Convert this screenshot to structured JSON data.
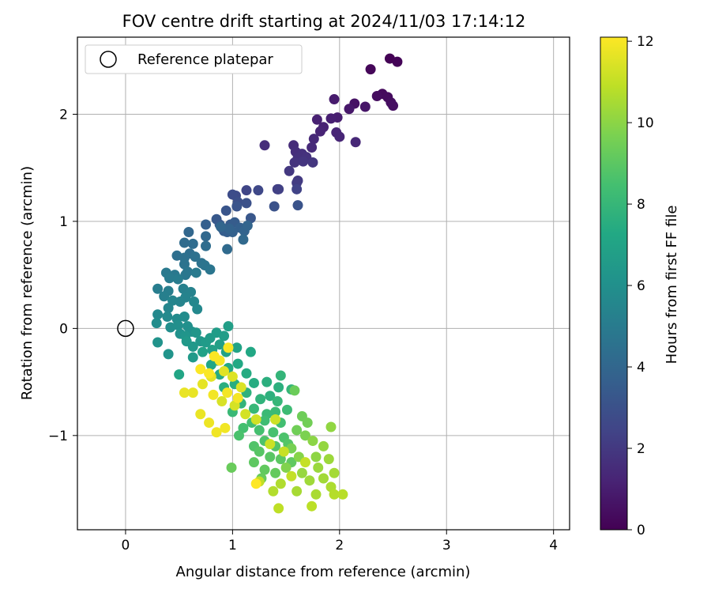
{
  "chart_data": {
    "type": "scatter",
    "title": "FOV centre drift starting at 2024/11/03 17:14:12",
    "xlabel": "Angular distance from reference (arcmin)",
    "ylabel": "Rotation from reference (arcmin)",
    "xlim": [
      -0.45,
      4.15
    ],
    "ylim": [
      -1.88,
      2.72
    ],
    "xticks": [
      0,
      1,
      2,
      3,
      4
    ],
    "yticks": [
      -1,
      0,
      1,
      2
    ],
    "grid": true,
    "legend": {
      "position": "top-left",
      "entries": [
        "Reference platepar"
      ]
    },
    "reference_point": {
      "x": 0,
      "y": 0,
      "label": "Reference platepar"
    },
    "colorbar": {
      "label": "Hours from first FF file",
      "range": [
        0,
        12.1
      ],
      "ticks": [
        0,
        2,
        4,
        6,
        8,
        10,
        12
      ],
      "colormap": "viridis"
    },
    "points": [
      {
        "x": 2.47,
        "y": 2.52,
        "h": 0.05
      },
      {
        "x": 2.54,
        "y": 2.49,
        "h": 0.1
      },
      {
        "x": 2.29,
        "y": 2.42,
        "h": 0.2
      },
      {
        "x": 2.4,
        "y": 2.19,
        "h": 0.3
      },
      {
        "x": 2.45,
        "y": 2.16,
        "h": 0.35
      },
      {
        "x": 2.35,
        "y": 2.17,
        "h": 0.4
      },
      {
        "x": 2.48,
        "y": 2.11,
        "h": 0.45
      },
      {
        "x": 2.5,
        "y": 2.08,
        "h": 0.5
      },
      {
        "x": 2.14,
        "y": 2.1,
        "h": 0.6
      },
      {
        "x": 2.24,
        "y": 2.07,
        "h": 0.7
      },
      {
        "x": 2.09,
        "y": 2.05,
        "h": 0.8
      },
      {
        "x": 1.95,
        "y": 2.14,
        "h": 0.9
      },
      {
        "x": 1.98,
        "y": 1.97,
        "h": 1.0
      },
      {
        "x": 1.92,
        "y": 1.96,
        "h": 1.05
      },
      {
        "x": 1.79,
        "y": 1.95,
        "h": 1.1
      },
      {
        "x": 1.85,
        "y": 1.88,
        "h": 1.15
      },
      {
        "x": 1.82,
        "y": 1.84,
        "h": 1.2
      },
      {
        "x": 1.97,
        "y": 1.83,
        "h": 1.25
      },
      {
        "x": 2.0,
        "y": 1.79,
        "h": 1.3
      },
      {
        "x": 2.15,
        "y": 1.74,
        "h": 1.35
      },
      {
        "x": 1.76,
        "y": 1.77,
        "h": 1.4
      },
      {
        "x": 1.74,
        "y": 1.69,
        "h": 1.45
      },
      {
        "x": 1.57,
        "y": 1.71,
        "h": 1.5
      },
      {
        "x": 1.3,
        "y": 1.71,
        "h": 1.55
      },
      {
        "x": 1.59,
        "y": 1.65,
        "h": 1.6
      },
      {
        "x": 1.65,
        "y": 1.63,
        "h": 1.65
      },
      {
        "x": 1.61,
        "y": 1.59,
        "h": 1.7
      },
      {
        "x": 1.69,
        "y": 1.6,
        "h": 1.75
      },
      {
        "x": 1.58,
        "y": 1.55,
        "h": 1.8
      },
      {
        "x": 1.66,
        "y": 1.56,
        "h": 1.85
      },
      {
        "x": 1.75,
        "y": 1.55,
        "h": 1.9
      },
      {
        "x": 1.53,
        "y": 1.47,
        "h": 1.95
      },
      {
        "x": 1.61,
        "y": 1.38,
        "h": 2.0
      },
      {
        "x": 1.6,
        "y": 1.36,
        "h": 2.1
      },
      {
        "x": 1.42,
        "y": 1.3,
        "h": 2.2
      },
      {
        "x": 1.43,
        "y": 1.3,
        "h": 2.3
      },
      {
        "x": 1.6,
        "y": 1.3,
        "h": 2.4
      },
      {
        "x": 1.13,
        "y": 1.29,
        "h": 2.5
      },
      {
        "x": 1.24,
        "y": 1.29,
        "h": 2.6
      },
      {
        "x": 1.03,
        "y": 1.24,
        "h": 2.7
      },
      {
        "x": 1.0,
        "y": 1.25,
        "h": 2.8
      },
      {
        "x": 1.05,
        "y": 1.18,
        "h": 2.9
      },
      {
        "x": 1.13,
        "y": 1.17,
        "h": 3.0
      },
      {
        "x": 1.39,
        "y": 1.14,
        "h": 3.05
      },
      {
        "x": 1.61,
        "y": 1.15,
        "h": 3.1
      },
      {
        "x": 1.04,
        "y": 1.14,
        "h": 3.15
      },
      {
        "x": 0.94,
        "y": 1.1,
        "h": 3.2
      },
      {
        "x": 1.17,
        "y": 1.03,
        "h": 3.25
      },
      {
        "x": 0.85,
        "y": 1.02,
        "h": 3.3
      },
      {
        "x": 0.88,
        "y": 0.97,
        "h": 3.35
      },
      {
        "x": 0.9,
        "y": 0.94,
        "h": 3.4
      },
      {
        "x": 0.98,
        "y": 0.97,
        "h": 3.45
      },
      {
        "x": 1.02,
        "y": 0.99,
        "h": 3.5
      },
      {
        "x": 0.92,
        "y": 0.91,
        "h": 3.55
      },
      {
        "x": 0.95,
        "y": 0.9,
        "h": 3.6
      },
      {
        "x": 0.75,
        "y": 0.97,
        "h": 3.65
      },
      {
        "x": 1.07,
        "y": 0.94,
        "h": 3.7
      },
      {
        "x": 1.0,
        "y": 0.9,
        "h": 3.75
      },
      {
        "x": 0.97,
        "y": 0.93,
        "h": 3.8
      },
      {
        "x": 1.11,
        "y": 0.91,
        "h": 3.85
      },
      {
        "x": 1.14,
        "y": 0.96,
        "h": 3.9
      },
      {
        "x": 0.89,
        "y": 0.95,
        "h": 3.95
      },
      {
        "x": 0.59,
        "y": 0.9,
        "h": 4.0
      },
      {
        "x": 0.75,
        "y": 0.86,
        "h": 4.05
      },
      {
        "x": 1.1,
        "y": 0.83,
        "h": 4.1
      },
      {
        "x": 0.95,
        "y": 0.74,
        "h": 4.15
      },
      {
        "x": 0.55,
        "y": 0.8,
        "h": 4.2
      },
      {
        "x": 0.63,
        "y": 0.79,
        "h": 4.25
      },
      {
        "x": 0.75,
        "y": 0.77,
        "h": 4.3
      },
      {
        "x": 0.6,
        "y": 0.7,
        "h": 4.35
      },
      {
        "x": 0.48,
        "y": 0.68,
        "h": 4.4
      },
      {
        "x": 0.55,
        "y": 0.66,
        "h": 4.45
      },
      {
        "x": 0.65,
        "y": 0.67,
        "h": 4.5
      },
      {
        "x": 0.71,
        "y": 0.61,
        "h": 4.55
      },
      {
        "x": 0.55,
        "y": 0.6,
        "h": 4.6
      },
      {
        "x": 0.74,
        "y": 0.59,
        "h": 4.65
      },
      {
        "x": 0.79,
        "y": 0.55,
        "h": 4.7
      },
      {
        "x": 0.58,
        "y": 0.53,
        "h": 4.75
      },
      {
        "x": 0.56,
        "y": 0.5,
        "h": 4.8
      },
      {
        "x": 0.46,
        "y": 0.5,
        "h": 4.85
      },
      {
        "x": 0.38,
        "y": 0.52,
        "h": 4.9
      },
      {
        "x": 0.66,
        "y": 0.52,
        "h": 4.95
      },
      {
        "x": 0.41,
        "y": 0.47,
        "h": 5.0
      },
      {
        "x": 0.49,
        "y": 0.46,
        "h": 5.05
      },
      {
        "x": 0.3,
        "y": 0.37,
        "h": 5.1
      },
      {
        "x": 0.4,
        "y": 0.35,
        "h": 5.15
      },
      {
        "x": 0.36,
        "y": 0.3,
        "h": 5.2
      },
      {
        "x": 0.54,
        "y": 0.37,
        "h": 5.25
      },
      {
        "x": 0.61,
        "y": 0.34,
        "h": 5.3
      },
      {
        "x": 0.56,
        "y": 0.29,
        "h": 5.35
      },
      {
        "x": 0.51,
        "y": 0.25,
        "h": 5.4
      },
      {
        "x": 0.44,
        "y": 0.26,
        "h": 5.45
      },
      {
        "x": 0.4,
        "y": 0.19,
        "h": 5.5
      },
      {
        "x": 0.64,
        "y": 0.25,
        "h": 5.55
      },
      {
        "x": 0.67,
        "y": 0.18,
        "h": 5.6
      },
      {
        "x": 0.3,
        "y": 0.13,
        "h": 5.65
      },
      {
        "x": 0.39,
        "y": 0.11,
        "h": 5.7
      },
      {
        "x": 0.48,
        "y": 0.09,
        "h": 5.75
      },
      {
        "x": 0.55,
        "y": 0.11,
        "h": 5.8
      },
      {
        "x": 0.29,
        "y": 0.05,
        "h": 5.85
      },
      {
        "x": 0.42,
        "y": 0.01,
        "h": 5.9
      },
      {
        "x": 0.49,
        "y": 0.03,
        "h": 5.95
      },
      {
        "x": 0.58,
        "y": 0.02,
        "h": 6.0
      },
      {
        "x": 0.62,
        "y": -0.03,
        "h": 6.05
      },
      {
        "x": 0.51,
        "y": -0.05,
        "h": 6.1
      },
      {
        "x": 0.3,
        "y": -0.13,
        "h": 6.15
      },
      {
        "x": 0.4,
        "y": -0.24,
        "h": 6.2
      },
      {
        "x": 0.56,
        "y": -0.07,
        "h": 6.25
      },
      {
        "x": 0.66,
        "y": -0.04,
        "h": 6.3
      },
      {
        "x": 0.7,
        "y": -0.12,
        "h": 6.35
      },
      {
        "x": 0.63,
        "y": -0.17,
        "h": 6.4
      },
      {
        "x": 0.57,
        "y": -0.12,
        "h": 6.45
      },
      {
        "x": 0.63,
        "y": -0.27,
        "h": 6.5
      },
      {
        "x": 0.75,
        "y": -0.13,
        "h": 6.55
      },
      {
        "x": 0.79,
        "y": -0.09,
        "h": 6.6
      },
      {
        "x": 0.85,
        "y": -0.04,
        "h": 6.65
      },
      {
        "x": 0.92,
        "y": -0.07,
        "h": 6.7
      },
      {
        "x": 0.96,
        "y": 0.02,
        "h": 6.75
      },
      {
        "x": 0.88,
        "y": -0.15,
        "h": 6.8
      },
      {
        "x": 0.81,
        "y": -0.2,
        "h": 6.85
      },
      {
        "x": 0.72,
        "y": -0.22,
        "h": 6.9
      },
      {
        "x": 0.94,
        "y": -0.22,
        "h": 6.95
      },
      {
        "x": 1.04,
        "y": -0.18,
        "h": 7.0
      },
      {
        "x": 0.86,
        "y": -0.3,
        "h": 7.05
      },
      {
        "x": 0.5,
        "y": -0.43,
        "h": 7.1
      },
      {
        "x": 0.8,
        "y": -0.34,
        "h": 7.15
      },
      {
        "x": 1.17,
        "y": -0.22,
        "h": 7.2
      },
      {
        "x": 1.05,
        "y": -0.33,
        "h": 7.25
      },
      {
        "x": 0.96,
        "y": -0.37,
        "h": 7.3
      },
      {
        "x": 0.88,
        "y": -0.43,
        "h": 7.35
      },
      {
        "x": 1.13,
        "y": -0.42,
        "h": 7.4
      },
      {
        "x": 1.2,
        "y": -0.51,
        "h": 7.45
      },
      {
        "x": 1.02,
        "y": -0.52,
        "h": 7.5
      },
      {
        "x": 0.92,
        "y": -0.55,
        "h": 7.55
      },
      {
        "x": 1.32,
        "y": -0.5,
        "h": 7.6
      },
      {
        "x": 1.43,
        "y": -0.55,
        "h": 7.65
      },
      {
        "x": 1.35,
        "y": -0.63,
        "h": 7.7
      },
      {
        "x": 1.13,
        "y": -0.6,
        "h": 7.75
      },
      {
        "x": 1.26,
        "y": -0.66,
        "h": 7.8
      },
      {
        "x": 1.08,
        "y": -0.7,
        "h": 7.85
      },
      {
        "x": 1.45,
        "y": -0.44,
        "h": 7.9
      },
      {
        "x": 1.55,
        "y": -0.57,
        "h": 7.95
      },
      {
        "x": 1.42,
        "y": -0.68,
        "h": 8.0
      },
      {
        "x": 1.2,
        "y": -0.75,
        "h": 8.05
      },
      {
        "x": 1.0,
        "y": -0.78,
        "h": 8.1
      },
      {
        "x": 1.32,
        "y": -0.8,
        "h": 8.15
      },
      {
        "x": 1.4,
        "y": -0.78,
        "h": 8.2
      },
      {
        "x": 1.51,
        "y": -0.76,
        "h": 8.25
      },
      {
        "x": 1.3,
        "y": -0.86,
        "h": 8.3
      },
      {
        "x": 1.18,
        "y": -0.88,
        "h": 8.35
      },
      {
        "x": 1.45,
        "y": -0.88,
        "h": 8.4
      },
      {
        "x": 1.1,
        "y": -0.93,
        "h": 8.45
      },
      {
        "x": 1.25,
        "y": -0.95,
        "h": 8.5
      },
      {
        "x": 1.38,
        "y": -0.97,
        "h": 8.55
      },
      {
        "x": 1.06,
        "y": -1.0,
        "h": 8.6
      },
      {
        "x": 1.48,
        "y": -1.02,
        "h": 8.65
      },
      {
        "x": 1.3,
        "y": -1.05,
        "h": 8.7
      },
      {
        "x": 1.2,
        "y": -1.1,
        "h": 8.75
      },
      {
        "x": 1.4,
        "y": -1.1,
        "h": 8.8
      },
      {
        "x": 1.52,
        "y": -1.08,
        "h": 8.85
      },
      {
        "x": 1.25,
        "y": -1.15,
        "h": 8.9
      },
      {
        "x": 1.35,
        "y": -1.2,
        "h": 8.95
      },
      {
        "x": 1.45,
        "y": -1.22,
        "h": 9.0
      },
      {
        "x": 1.2,
        "y": -1.25,
        "h": 9.05
      },
      {
        "x": 1.55,
        "y": -1.25,
        "h": 9.1
      },
      {
        "x": 1.3,
        "y": -1.32,
        "h": 9.15
      },
      {
        "x": 1.4,
        "y": -1.35,
        "h": 9.2
      },
      {
        "x": 1.27,
        "y": -1.4,
        "h": 9.25
      },
      {
        "x": 0.99,
        "y": -1.3,
        "h": 9.3
      },
      {
        "x": 1.58,
        "y": -0.58,
        "h": 9.35
      },
      {
        "x": 1.65,
        "y": -0.82,
        "h": 9.4
      },
      {
        "x": 1.6,
        "y": -0.95,
        "h": 9.45
      },
      {
        "x": 1.7,
        "y": -0.88,
        "h": 9.5
      },
      {
        "x": 1.55,
        "y": -1.12,
        "h": 9.6
      },
      {
        "x": 1.68,
        "y": -1.0,
        "h": 9.7
      },
      {
        "x": 1.5,
        "y": -1.3,
        "h": 9.8
      },
      {
        "x": 1.62,
        "y": -1.2,
        "h": 9.9
      },
      {
        "x": 1.75,
        "y": -1.05,
        "h": 10.0
      },
      {
        "x": 1.78,
        "y": -1.2,
        "h": 10.05
      },
      {
        "x": 1.92,
        "y": -0.92,
        "h": 10.1
      },
      {
        "x": 1.85,
        "y": -1.1,
        "h": 10.15
      },
      {
        "x": 1.65,
        "y": -1.35,
        "h": 10.2
      },
      {
        "x": 1.8,
        "y": -1.3,
        "h": 10.25
      },
      {
        "x": 1.9,
        "y": -1.22,
        "h": 10.3
      },
      {
        "x": 1.72,
        "y": -1.42,
        "h": 10.35
      },
      {
        "x": 1.85,
        "y": -1.4,
        "h": 10.4
      },
      {
        "x": 1.95,
        "y": -1.35,
        "h": 10.45
      },
      {
        "x": 1.6,
        "y": -1.52,
        "h": 10.5
      },
      {
        "x": 1.78,
        "y": -1.55,
        "h": 10.55
      },
      {
        "x": 1.92,
        "y": -1.48,
        "h": 10.6
      },
      {
        "x": 1.45,
        "y": -1.45,
        "h": 10.65
      },
      {
        "x": 1.38,
        "y": -1.52,
        "h": 10.7
      },
      {
        "x": 1.95,
        "y": -1.55,
        "h": 10.75
      },
      {
        "x": 2.03,
        "y": -1.55,
        "h": 10.8
      },
      {
        "x": 1.74,
        "y": -1.66,
        "h": 10.85
      },
      {
        "x": 1.43,
        "y": -1.68,
        "h": 10.9
      },
      {
        "x": 1.25,
        "y": -1.43,
        "h": 10.95
      },
      {
        "x": 1.55,
        "y": -1.38,
        "h": 11.0
      },
      {
        "x": 1.68,
        "y": -1.25,
        "h": 11.05
      },
      {
        "x": 1.48,
        "y": -1.15,
        "h": 11.1
      },
      {
        "x": 1.35,
        "y": -1.08,
        "h": 11.15
      },
      {
        "x": 1.4,
        "y": -0.85,
        "h": 11.2
      },
      {
        "x": 1.22,
        "y": -0.85,
        "h": 11.25
      },
      {
        "x": 1.12,
        "y": -0.8,
        "h": 11.3
      },
      {
        "x": 1.02,
        "y": -0.72,
        "h": 11.35
      },
      {
        "x": 0.9,
        "y": -0.68,
        "h": 11.4
      },
      {
        "x": 1.08,
        "y": -0.55,
        "h": 11.45
      },
      {
        "x": 1.0,
        "y": -0.45,
        "h": 11.5
      },
      {
        "x": 0.92,
        "y": -0.4,
        "h": 11.55
      },
      {
        "x": 0.8,
        "y": -0.45,
        "h": 11.6
      },
      {
        "x": 0.72,
        "y": -0.52,
        "h": 11.65
      },
      {
        "x": 0.63,
        "y": -0.6,
        "h": 11.7
      },
      {
        "x": 0.55,
        "y": -0.6,
        "h": 11.72
      },
      {
        "x": 0.7,
        "y": -0.8,
        "h": 11.75
      },
      {
        "x": 0.78,
        "y": -0.88,
        "h": 11.8
      },
      {
        "x": 0.85,
        "y": -0.97,
        "h": 11.85
      },
      {
        "x": 0.93,
        "y": -0.93,
        "h": 11.88
      },
      {
        "x": 0.82,
        "y": -0.62,
        "h": 11.9
      },
      {
        "x": 0.95,
        "y": -0.6,
        "h": 11.92
      },
      {
        "x": 1.05,
        "y": -0.65,
        "h": 11.95
      },
      {
        "x": 0.88,
        "y": -0.3,
        "h": 11.97
      },
      {
        "x": 0.96,
        "y": -0.18,
        "h": 12.0
      },
      {
        "x": 0.83,
        "y": -0.26,
        "h": 12.02
      },
      {
        "x": 0.78,
        "y": -0.42,
        "h": 12.05
      },
      {
        "x": 0.7,
        "y": -0.38,
        "h": 12.07
      },
      {
        "x": 1.22,
        "y": -1.45,
        "h": 12.1
      }
    ]
  }
}
